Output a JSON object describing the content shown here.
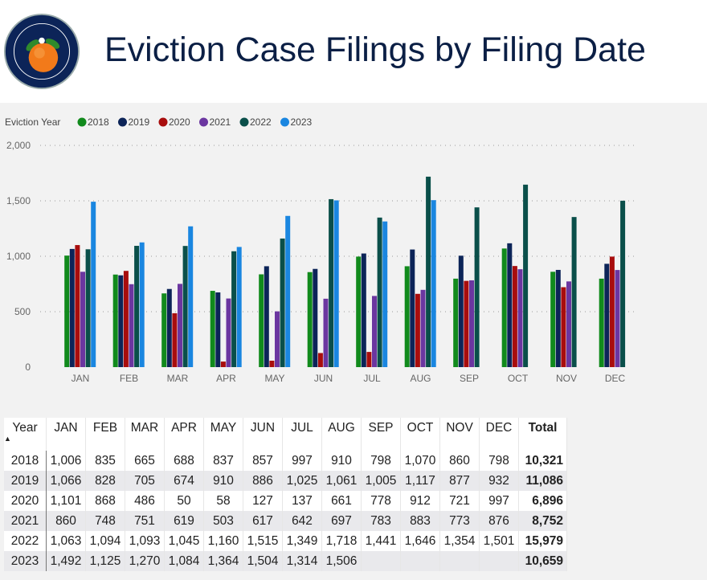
{
  "header": {
    "title": "Eviction Case Filings by Filing Date",
    "seal_text": "CLERK CIRCUIT COURT · ORANGE COUNTY · FLORIDA"
  },
  "chart_data": {
    "type": "bar",
    "title": "",
    "legend_title": "Eviction Year",
    "legend_placement": "top-left",
    "categories": [
      "JAN",
      "FEB",
      "MAR",
      "APR",
      "MAY",
      "JUN",
      "JUL",
      "AUG",
      "SEP",
      "OCT",
      "NOV",
      "DEC"
    ],
    "ylim": [
      0,
      2000
    ],
    "yticks": [
      0,
      500,
      1000,
      1500,
      2000
    ],
    "ytick_labels": [
      "0",
      "500",
      "1,000",
      "1,500",
      "2,000"
    ],
    "grid": true,
    "series": [
      {
        "name": "2018",
        "color": "#118a1c",
        "values": [
          1006,
          835,
          665,
          688,
          837,
          857,
          997,
          910,
          798,
          1070,
          860,
          798
        ]
      },
      {
        "name": "2019",
        "color": "#0c2458",
        "values": [
          1066,
          828,
          705,
          674,
          910,
          886,
          1025,
          1061,
          1005,
          1117,
          877,
          932
        ]
      },
      {
        "name": "2020",
        "color": "#a80d0d",
        "values": [
          1101,
          868,
          486,
          50,
          58,
          127,
          137,
          661,
          778,
          912,
          721,
          997
        ]
      },
      {
        "name": "2021",
        "color": "#6b36a0",
        "values": [
          860,
          748,
          751,
          619,
          503,
          617,
          642,
          697,
          783,
          883,
          773,
          876
        ]
      },
      {
        "name": "2022",
        "color": "#0a4f4a",
        "values": [
          1063,
          1094,
          1093,
          1045,
          1160,
          1515,
          1349,
          1718,
          1441,
          1646,
          1354,
          1501
        ]
      },
      {
        "name": "2023",
        "color": "#1a86e0",
        "values": [
          1492,
          1125,
          1270,
          1084,
          1364,
          1504,
          1314,
          1506,
          null,
          null,
          null,
          null
        ]
      }
    ]
  },
  "table": {
    "year_header": "Year",
    "sort_indicator": "▲",
    "total_header": "Total",
    "months": [
      "JAN",
      "FEB",
      "MAR",
      "APR",
      "MAY",
      "JUN",
      "JUL",
      "AUG",
      "SEP",
      "OCT",
      "NOV",
      "DEC"
    ],
    "rows": [
      {
        "year": "2018",
        "cells": [
          "1,006",
          "835",
          "665",
          "688",
          "837",
          "857",
          "997",
          "910",
          "798",
          "1,070",
          "860",
          "798"
        ],
        "total": "10,321"
      },
      {
        "year": "2019",
        "cells": [
          "1,066",
          "828",
          "705",
          "674",
          "910",
          "886",
          "1,025",
          "1,061",
          "1,005",
          "1,117",
          "877",
          "932"
        ],
        "total": "11,086"
      },
      {
        "year": "2020",
        "cells": [
          "1,101",
          "868",
          "486",
          "50",
          "58",
          "127",
          "137",
          "661",
          "778",
          "912",
          "721",
          "997"
        ],
        "total": "6,896"
      },
      {
        "year": "2021",
        "cells": [
          "860",
          "748",
          "751",
          "619",
          "503",
          "617",
          "642",
          "697",
          "783",
          "883",
          "773",
          "876"
        ],
        "total": "8,752"
      },
      {
        "year": "2022",
        "cells": [
          "1,063",
          "1,094",
          "1,093",
          "1,045",
          "1,160",
          "1,515",
          "1,349",
          "1,718",
          "1,441",
          "1,646",
          "1,354",
          "1,501"
        ],
        "total": "15,979"
      },
      {
        "year": "2023",
        "cells": [
          "1,492",
          "1,125",
          "1,270",
          "1,084",
          "1,364",
          "1,504",
          "1,314",
          "1,506",
          "",
          "",
          "",
          ""
        ],
        "total": "10,659"
      }
    ]
  }
}
